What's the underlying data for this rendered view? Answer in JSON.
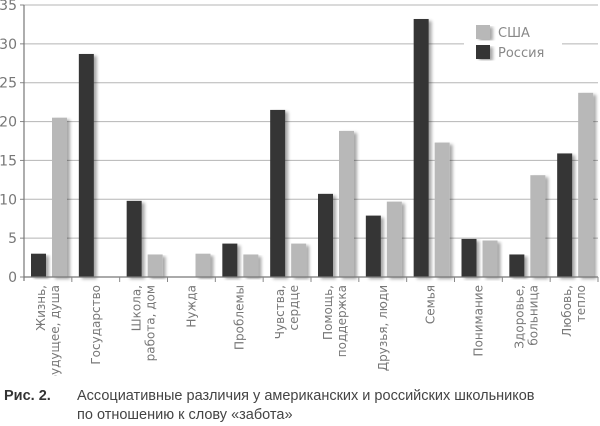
{
  "chart_data": {
    "type": "bar",
    "title": "",
    "xlabel": "",
    "ylabel": "",
    "ylim": [
      0,
      35
    ],
    "yticks": [
      0,
      5,
      10,
      15,
      20,
      25,
      30,
      35
    ],
    "grid": true,
    "legend_position": "top-right",
    "categories": [
      "Жизнь, будущее, душа",
      "Государство",
      "Школа, работа, дом",
      "Нужда",
      "Проблемы",
      "Чувства, сердце",
      "Помощь, поддержка",
      "Друзья, люди",
      "Семья",
      "Понимание",
      "Здоровье, больница",
      "Любовь, тепло"
    ],
    "category_lines": [
      [
        "Жизнь,",
        "будущее, душа"
      ],
      [
        "Государство"
      ],
      [
        "Школа,",
        "работа, дом"
      ],
      [
        "Нужда"
      ],
      [
        "Проблемы"
      ],
      [
        "Чувства,",
        "сердце"
      ],
      [
        "Помощь,",
        "поддержка"
      ],
      [
        "Друзья, люди"
      ],
      [
        "Семья"
      ],
      [
        "Понимание"
      ],
      [
        "Здоровье,",
        "больница"
      ],
      [
        "Любовь,",
        "тепло"
      ]
    ],
    "series": [
      {
        "name": "Россия",
        "color": "#363636",
        "values": [
          3.0,
          28.7,
          9.8,
          0,
          4.3,
          21.5,
          10.7,
          7.9,
          33.2,
          4.9,
          2.9,
          15.9
        ]
      },
      {
        "name": "США",
        "color": "#b8b8b8",
        "values": [
          20.5,
          0,
          2.9,
          3.0,
          2.9,
          4.3,
          18.8,
          9.7,
          17.3,
          4.7,
          13.1,
          23.7
        ]
      }
    ],
    "legend": [
      "США",
      "Россия"
    ]
  },
  "caption": {
    "label": "Рис. 2.",
    "line1": "Ассоциативные различия у американских и российских школьников",
    "line2": "по отношению к слову «забота»"
  }
}
